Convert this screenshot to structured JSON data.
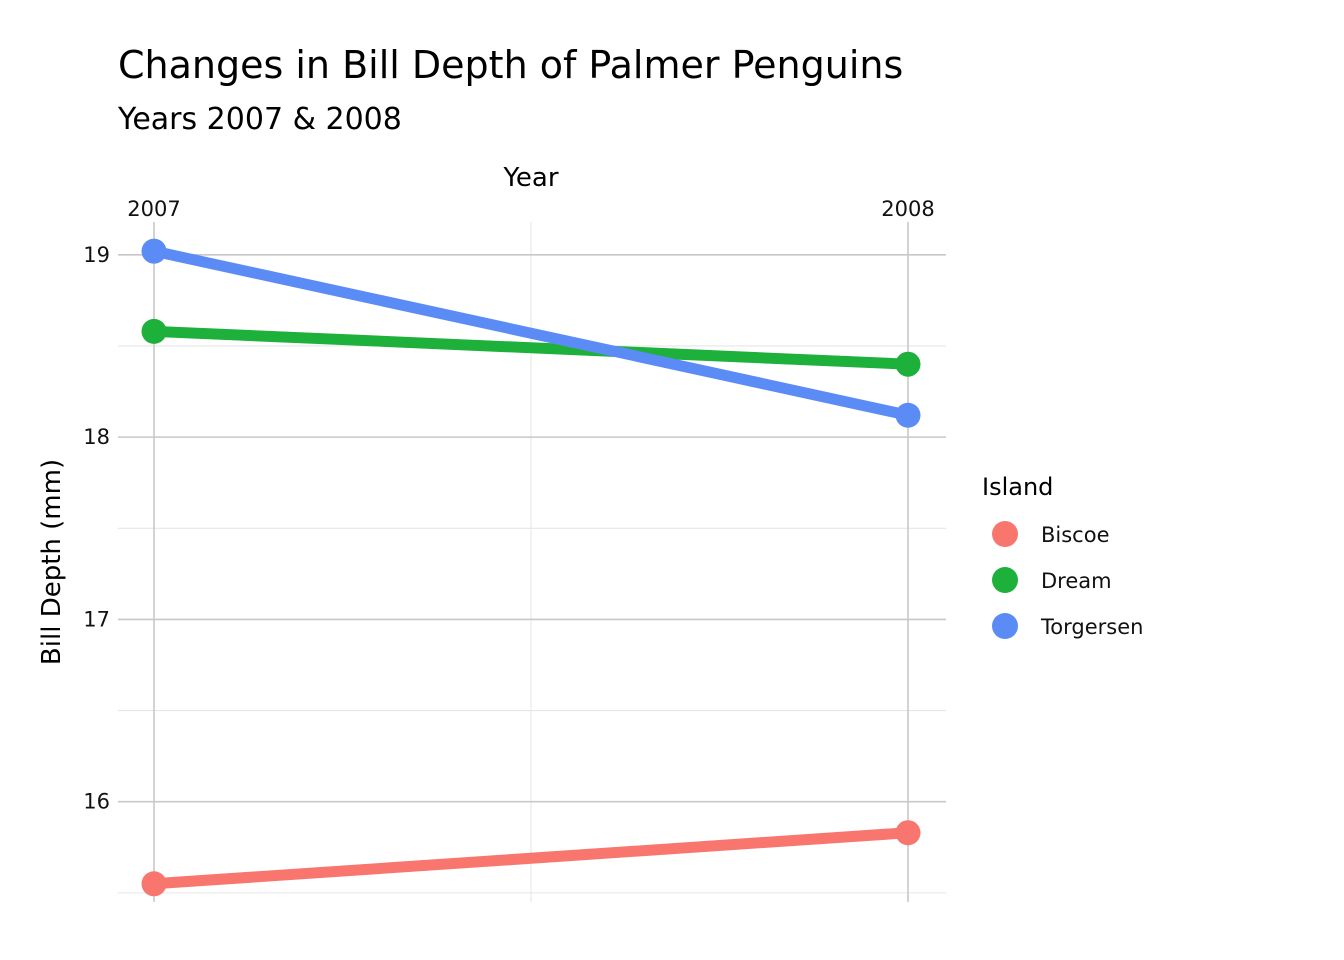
{
  "chart_data": {
    "type": "line",
    "title": "Changes in Bill Depth of Palmer Penguins",
    "subtitle": "Years 2007 & 2008",
    "xlabel": "Year",
    "ylabel": "Bill Depth (mm)",
    "x": [
      "2007",
      "2008"
    ],
    "x_axis_position": "top",
    "y_ticks": [
      16,
      17,
      18,
      19
    ],
    "ylim": [
      15.45,
      19.18
    ],
    "grid": true,
    "legend": {
      "title": "Island",
      "position": "right"
    },
    "series": [
      {
        "name": "Biscoe",
        "values": [
          15.55,
          15.83
        ],
        "color": "#F8766D"
      },
      {
        "name": "Dream",
        "values": [
          18.58,
          18.4
        ],
        "color": "#1DB03A"
      },
      {
        "name": "Torgersen",
        "values": [
          19.02,
          18.12
        ],
        "color": "#5B8CF6"
      }
    ]
  }
}
